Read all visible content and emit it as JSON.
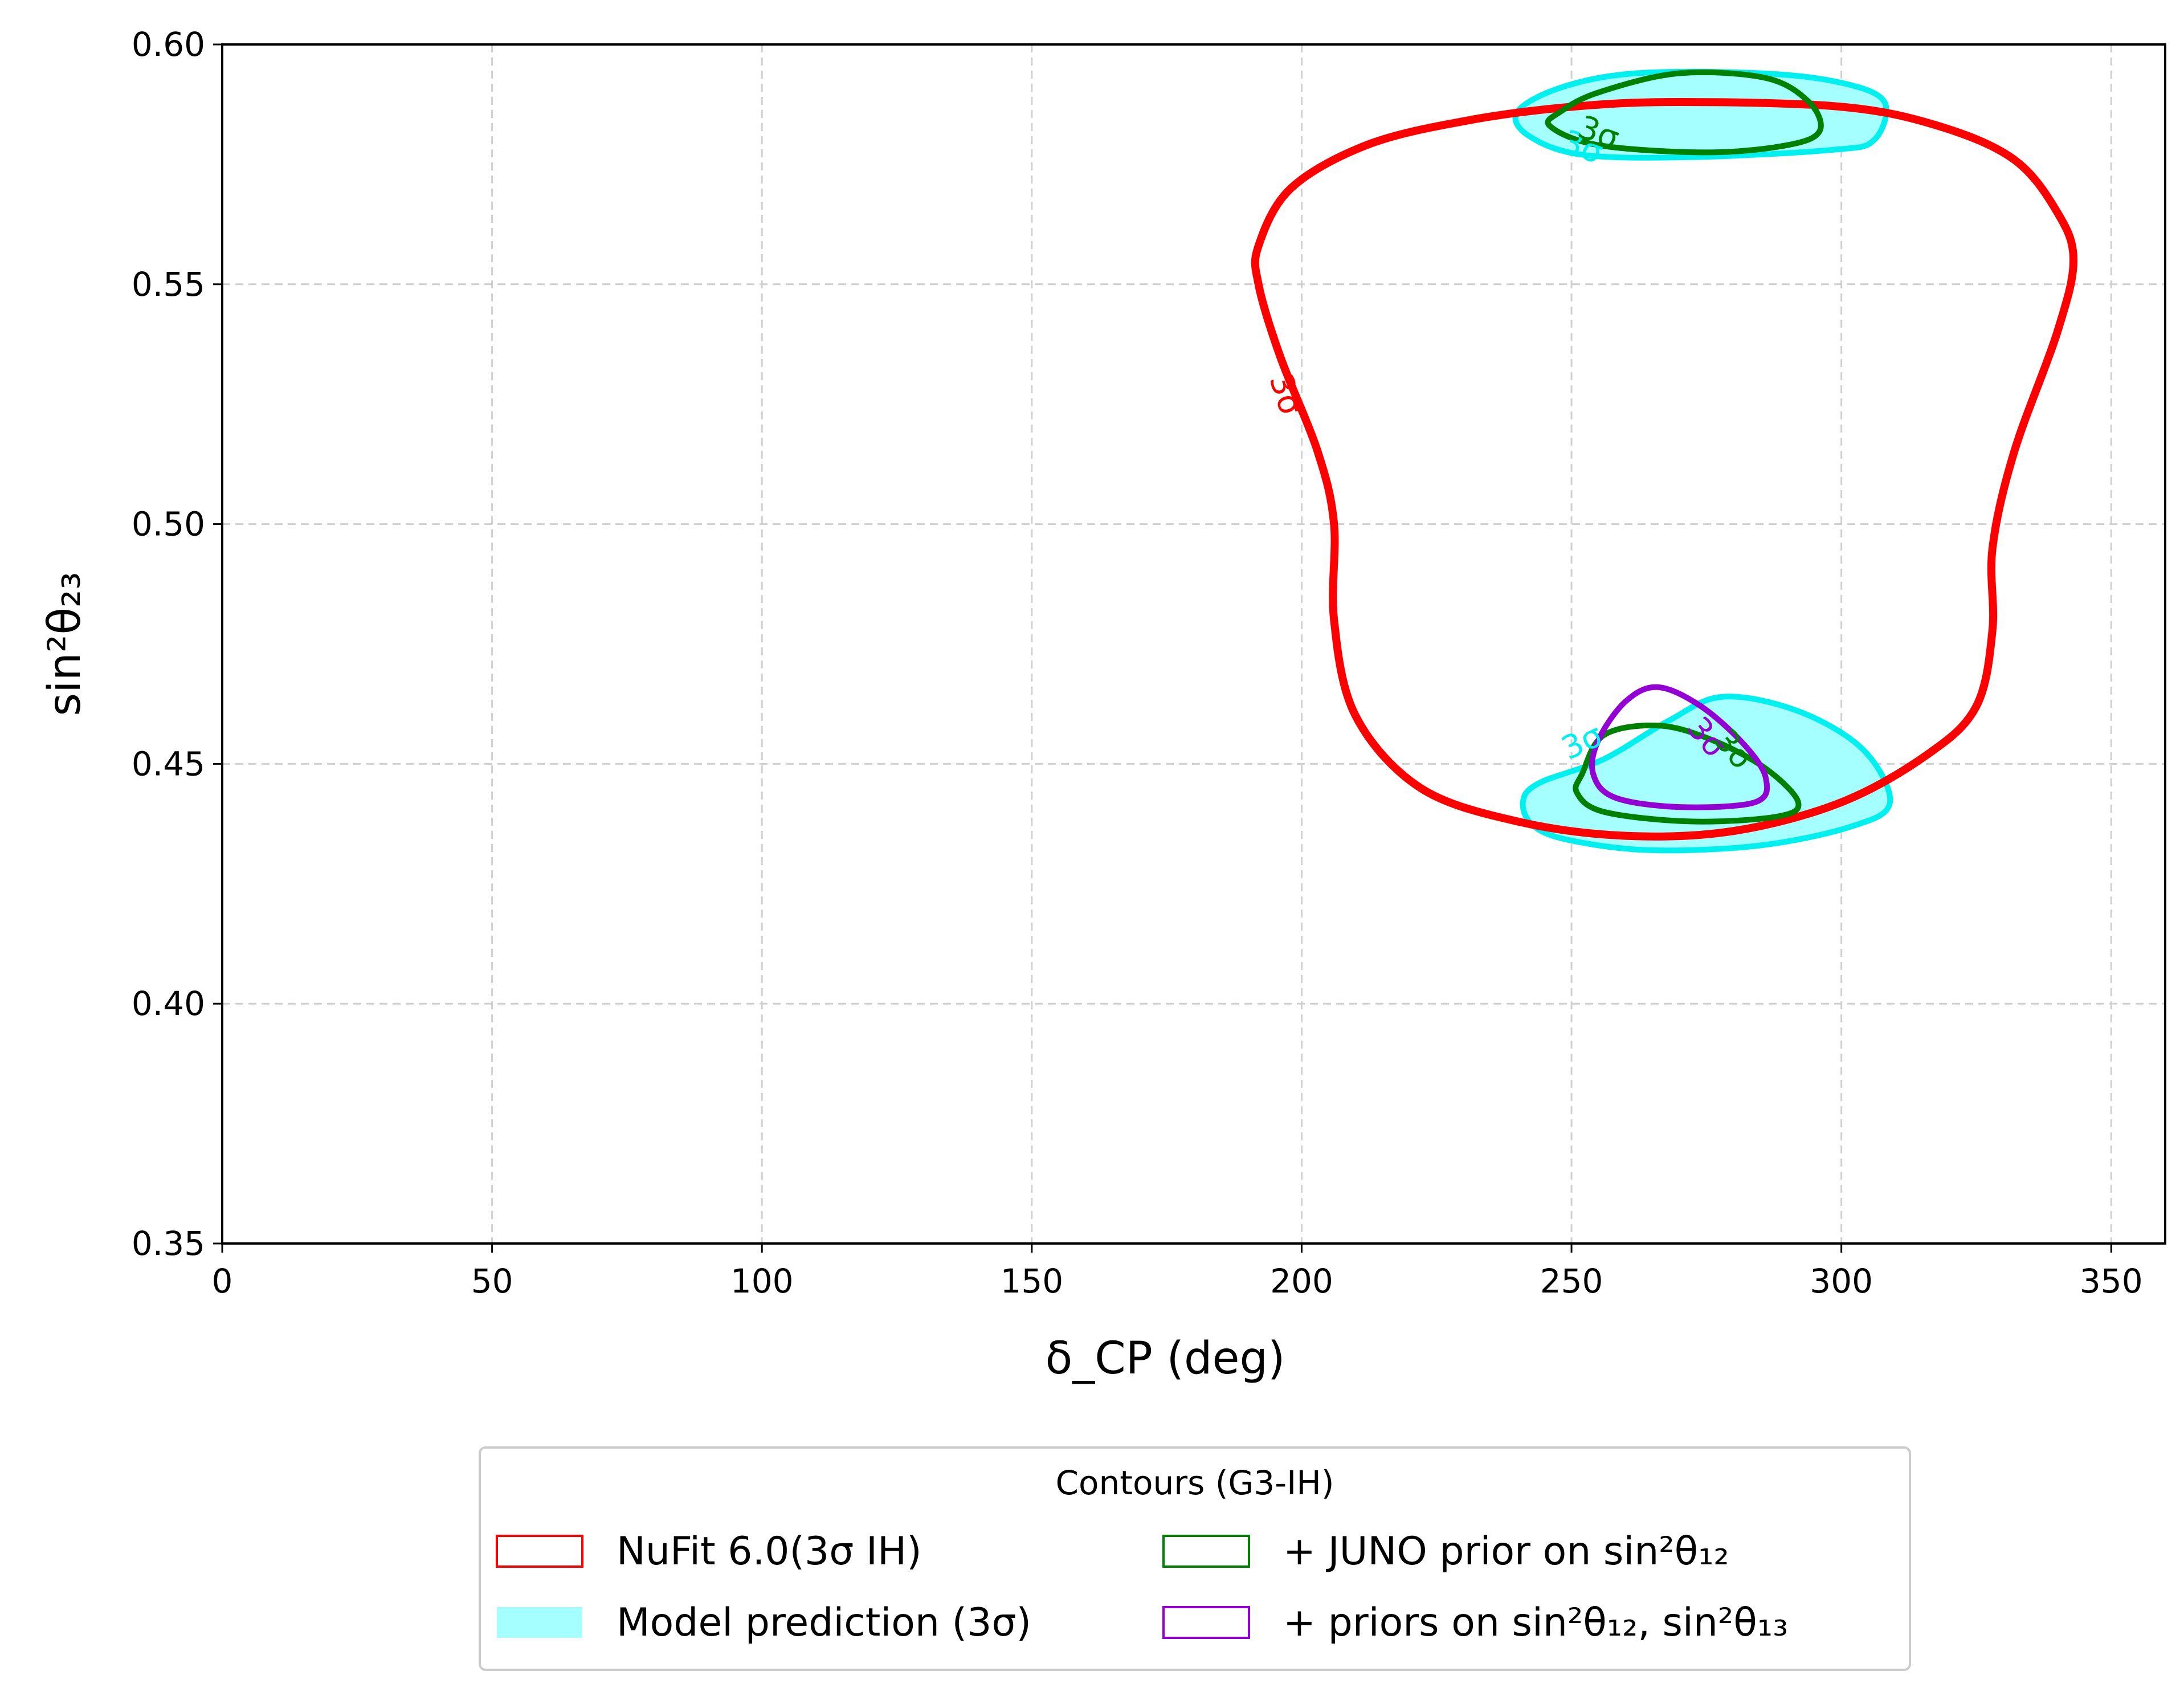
{
  "chart_data": {
    "type": "contour",
    "xlabel": "δ_CP (deg)",
    "ylabel": "sin²θ₂₃",
    "xlim": [
      0,
      360
    ],
    "ylim": [
      0.35,
      0.6
    ],
    "xticks": [
      0,
      50,
      100,
      150,
      200,
      250,
      300,
      350
    ],
    "xtick_labels": [
      "0",
      "50",
      "100",
      "150",
      "200",
      "250",
      "300",
      "350"
    ],
    "yticks": [
      0.35,
      0.4,
      0.45,
      0.5,
      0.55,
      0.6
    ],
    "ytick_labels": [
      "0.35",
      "0.40",
      "0.45",
      "0.50",
      "0.55",
      "0.60"
    ],
    "grid": true,
    "legend": {
      "title": "Contours (G3-IH)",
      "placement": "bottom-center, below plot",
      "entries": [
        {
          "label": "NuFit 6.0(3σ IH)",
          "style": "outline",
          "color": "#ff0000"
        },
        {
          "label": "Model prediction (3σ)",
          "style": "filled",
          "color": "#a6ffff"
        },
        {
          "label": "+ JUNO prior on sin²θ₁₂",
          "style": "outline",
          "color": "#008000"
        },
        {
          "label": "+ priors on sin²θ₁₂, sin²θ₁₃",
          "style": "outline",
          "color": "#9400d3"
        }
      ]
    },
    "series": [
      {
        "name": "NuFit 6.0(3σ IH)",
        "color": "#ff0000",
        "fill": false,
        "contour_label": "3σ",
        "points": [
          [
            270,
            0.588
          ],
          [
            300,
            0.587
          ],
          [
            318,
            0.583
          ],
          [
            332,
            0.576
          ],
          [
            340,
            0.565
          ],
          [
            343,
            0.555
          ],
          [
            340,
            0.54
          ],
          [
            332,
            0.515
          ],
          [
            328,
            0.495
          ],
          [
            328,
            0.478
          ],
          [
            325,
            0.462
          ],
          [
            316,
            0.452
          ],
          [
            300,
            0.442
          ],
          [
            280,
            0.436
          ],
          [
            260,
            0.435
          ],
          [
            240,
            0.438
          ],
          [
            222,
            0.445
          ],
          [
            210,
            0.46
          ],
          [
            206,
            0.48
          ],
          [
            206,
            0.5
          ],
          [
            203,
            0.515
          ],
          [
            196,
            0.535
          ],
          [
            192,
            0.55
          ],
          [
            192,
            0.558
          ],
          [
            198,
            0.57
          ],
          [
            212,
            0.579
          ],
          [
            230,
            0.584
          ],
          [
            250,
            0.587
          ]
        ]
      },
      {
        "name": "Model prediction (3σ)",
        "color": "#00f0f0",
        "fill": true,
        "fill_color": "#a6ffff",
        "regions": [
          {
            "contour_label": "3σ",
            "points": [
              [
                240,
                0.586
              ],
              [
                248,
                0.591
              ],
              [
                262,
                0.594
              ],
              [
                285,
                0.594
              ],
              [
                300,
                0.592
              ],
              [
                308,
                0.588
              ],
              [
                306,
                0.58
              ],
              [
                298,
                0.578
              ],
              [
                272,
                0.5765
              ],
              [
                252,
                0.577
              ],
              [
                242,
                0.581
              ]
            ]
          },
          {
            "contour_label": "3σ",
            "points": [
              [
                241,
                0.442
              ],
              [
                244,
                0.446
              ],
              [
                256,
                0.451
              ],
              [
                268,
                0.459
              ],
              [
                278,
                0.464
              ],
              [
                292,
                0.461
              ],
              [
                304,
                0.453
              ],
              [
                309,
                0.442
              ],
              [
                302,
                0.437
              ],
              [
                285,
                0.433
              ],
              [
                265,
                0.432
              ],
              [
                250,
                0.434
              ],
              [
                243,
                0.437
              ]
            ]
          }
        ]
      },
      {
        "name": "+ JUNO prior on sin²θ₁₂",
        "color": "#008000",
        "fill": false,
        "regions": [
          {
            "contour_label": "3σ",
            "points": [
              [
                248,
                0.586
              ],
              [
                255,
                0.59
              ],
              [
                270,
                0.594
              ],
              [
                286,
                0.593
              ],
              [
                294,
                0.588
              ],
              [
                296,
                0.582
              ],
              [
                290,
                0.579
              ],
              [
                275,
                0.5775
              ],
              [
                255,
                0.579
              ],
              [
                246,
                0.583
              ]
            ]
          },
          {
            "points": [
              [
                252,
                0.448
              ],
              [
                256,
                0.456
              ],
              [
                266,
                0.458
              ],
              [
                276,
                0.455
              ],
              [
                286,
                0.449
              ],
              [
                292,
                0.442
              ],
              [
                288,
                0.439
              ],
              [
                272,
                0.438
              ],
              [
                256,
                0.44
              ],
              [
                251,
                0.444
              ]
            ]
          }
        ]
      },
      {
        "name": "+ priors on sin²θ₁₂, sin²θ₁₃",
        "color": "#9400d3",
        "fill": false,
        "contour_label": "3σ",
        "points": [
          [
            255,
            0.455
          ],
          [
            260,
            0.463
          ],
          [
            266,
            0.466
          ],
          [
            274,
            0.462
          ],
          [
            282,
            0.454
          ],
          [
            286,
            0.447
          ],
          [
            284,
            0.442
          ],
          [
            270,
            0.441
          ],
          [
            258,
            0.443
          ],
          [
            254,
            0.448
          ]
        ]
      }
    ],
    "contour_labels": [
      {
        "text": "3σ",
        "color": "#ff0000",
        "x": 197,
        "y": 0.527,
        "rotation": 72
      },
      {
        "text": "3σ",
        "color": "#00f0f0",
        "x": 252,
        "y": 0.5785,
        "rotation": 20
      },
      {
        "text": "3σ",
        "color": "#008000",
        "x": 255,
        "y": 0.5815,
        "rotation": 20
      },
      {
        "text": "3σ",
        "color": "#00f0f0",
        "x": 252,
        "y": 0.4545,
        "rotation": -25
      },
      {
        "text": "3σ",
        "color": "#9400d3",
        "x": 275,
        "y": 0.4555,
        "rotation": 50
      },
      {
        "text": "3σ",
        "color": "#008000",
        "x": 280,
        "y": 0.453,
        "rotation": 50
      }
    ]
  }
}
